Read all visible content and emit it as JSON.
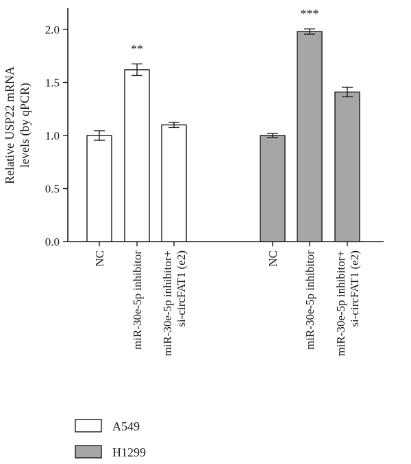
{
  "chart_data": {
    "type": "bar",
    "ylabel": "Relative USP22 mRNA levels (by qPCR)",
    "ylabel_lines": [
      "Relative USP22 mRNA",
      "levels (by qPCR)"
    ],
    "ylim": [
      0,
      2.2
    ],
    "yticks": [
      0.0,
      0.5,
      1.0,
      1.5,
      2.0
    ],
    "ytick_labels": [
      "0.0",
      "0.5",
      "1.0",
      "1.5",
      "2.0"
    ],
    "categories": [
      [
        "NC"
      ],
      [
        "miR-30e-5p inhibitor"
      ],
      [
        "miR-30e-5p inhibitor+",
        "si-circFAT1 (e2)"
      ]
    ],
    "series": [
      {
        "name": "A549",
        "color": "#ffffff",
        "values": [
          1.0,
          1.62,
          1.1
        ],
        "errors": [
          0.045,
          0.055,
          0.025
        ],
        "significance": [
          "",
          "**",
          ""
        ]
      },
      {
        "name": "H1299",
        "color": "#a6a6a6",
        "values": [
          1.0,
          1.98,
          1.41
        ],
        "errors": [
          0.02,
          0.025,
          0.045
        ],
        "significance": [
          "",
          "***",
          ""
        ]
      }
    ],
    "legend": {
      "position": "bottom-left"
    }
  }
}
